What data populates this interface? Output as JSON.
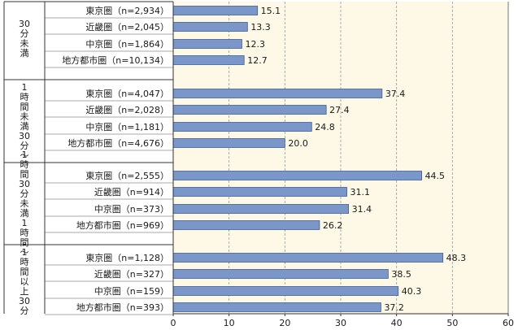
{
  "chart_data": {
    "type": "bar",
    "orientation": "horizontal",
    "xlim": [
      0,
      60
    ],
    "x_ticks": [
      "0",
      "10",
      "20",
      "30",
      "40",
      "50",
      "60"
    ],
    "grid": true,
    "colors": {
      "bar": "#7b96c8",
      "bar_edge": "#3d5f9c",
      "plot_bg": "#fdf9e6"
    },
    "groups": [
      {
        "label_lines": [
          "30",
          "分",
          "未",
          "満"
        ],
        "items": [
          {
            "label": "東京圏（n=2,934）",
            "value": 15.1,
            "value_label": "15.1"
          },
          {
            "label": "近畿圏（n=2,045）",
            "value": 13.3,
            "value_label": "13.3"
          },
          {
            "label": "中京圏（n=1,864）",
            "value": 12.3,
            "value_label": "12.3"
          },
          {
            "label": "地方都市圏（n=10,134）",
            "value": 12.7,
            "value_label": "12.7"
          }
        ]
      },
      {
        "label_lines": [
          "1",
          "時",
          "間",
          "未",
          "満",
          "30",
          "分",
          "～"
        ],
        "items": [
          {
            "label": "東京圏（n=4,047）",
            "value": 37.4,
            "value_label": "37.4"
          },
          {
            "label": "近畿圏（n=2,028）",
            "value": 27.4,
            "value_label": "27.4"
          },
          {
            "label": "中京圏（n=1,181）",
            "value": 24.8,
            "value_label": "24.8"
          },
          {
            "label": "地方都市圏（n=4,676）",
            "value": 20.0,
            "value_label": "20.0"
          }
        ]
      },
      {
        "label_lines": [
          "1",
          "時",
          "間",
          "30",
          "分",
          "未",
          "満",
          "1",
          "時",
          "間",
          "～"
        ],
        "items": [
          {
            "label": "東京圏（n=2,555）",
            "value": 44.5,
            "value_label": "44.5"
          },
          {
            "label": "近畿圏（n=914）",
            "value": 31.1,
            "value_label": "31.1"
          },
          {
            "label": "中京圏（n=373）",
            "value": 31.4,
            "value_label": "31.4"
          },
          {
            "label": "地方都市圏（n=969）",
            "value": 26.2,
            "value_label": "26.2"
          }
        ]
      },
      {
        "label_lines": [
          "1",
          "時",
          "間",
          "以",
          "上",
          "30",
          "分"
        ],
        "items": [
          {
            "label": "東京圏（n=1,128）",
            "value": 48.3,
            "value_label": "48.3"
          },
          {
            "label": "近畿圏（n=327）",
            "value": 38.5,
            "value_label": "38.5"
          },
          {
            "label": "中京圏（n=159）",
            "value": 40.3,
            "value_label": "40.3"
          },
          {
            "label": "地方都市圏（n=393）",
            "value": 37.2,
            "value_label": "37.2"
          }
        ]
      }
    ]
  }
}
